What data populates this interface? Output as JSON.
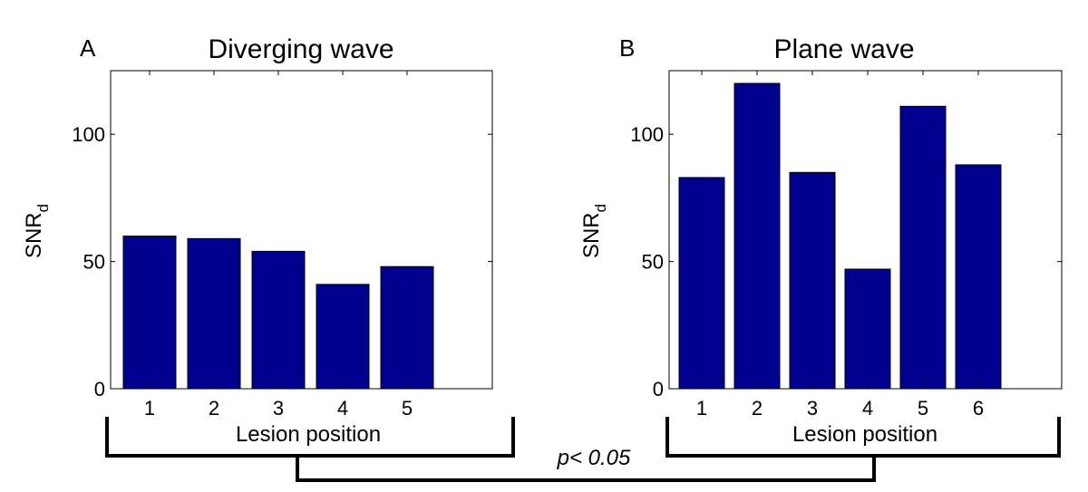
{
  "chart_data": [
    {
      "type": "bar",
      "panel_label": "A",
      "title": "Diverging wave",
      "xlabel": "Lesion position",
      "ylabel_main": "SNR",
      "ylabel_sub": "d",
      "categories": [
        "1",
        "2",
        "3",
        "4",
        "5"
      ],
      "values": [
        60,
        59,
        54,
        41,
        48
      ],
      "ylim": [
        0,
        125
      ],
      "yticks": [
        "0",
        "50",
        "100"
      ],
      "ytick_values": [
        0,
        50,
        100
      ],
      "bar_color": "#00008f"
    },
    {
      "type": "bar",
      "panel_label": "B",
      "title": "Plane wave",
      "xlabel": "Lesion position",
      "ylabel_main": "SNR",
      "ylabel_sub": "d",
      "categories": [
        "1",
        "2",
        "3",
        "4",
        "5",
        "6"
      ],
      "values": [
        83,
        120,
        85,
        47,
        111,
        88
      ],
      "ylim": [
        0,
        125
      ],
      "yticks": [
        "0",
        "50",
        "100"
      ],
      "ytick_values": [
        0,
        50,
        100
      ],
      "bar_color": "#00008f"
    }
  ],
  "annotation": {
    "p_value": "p< 0.05"
  }
}
